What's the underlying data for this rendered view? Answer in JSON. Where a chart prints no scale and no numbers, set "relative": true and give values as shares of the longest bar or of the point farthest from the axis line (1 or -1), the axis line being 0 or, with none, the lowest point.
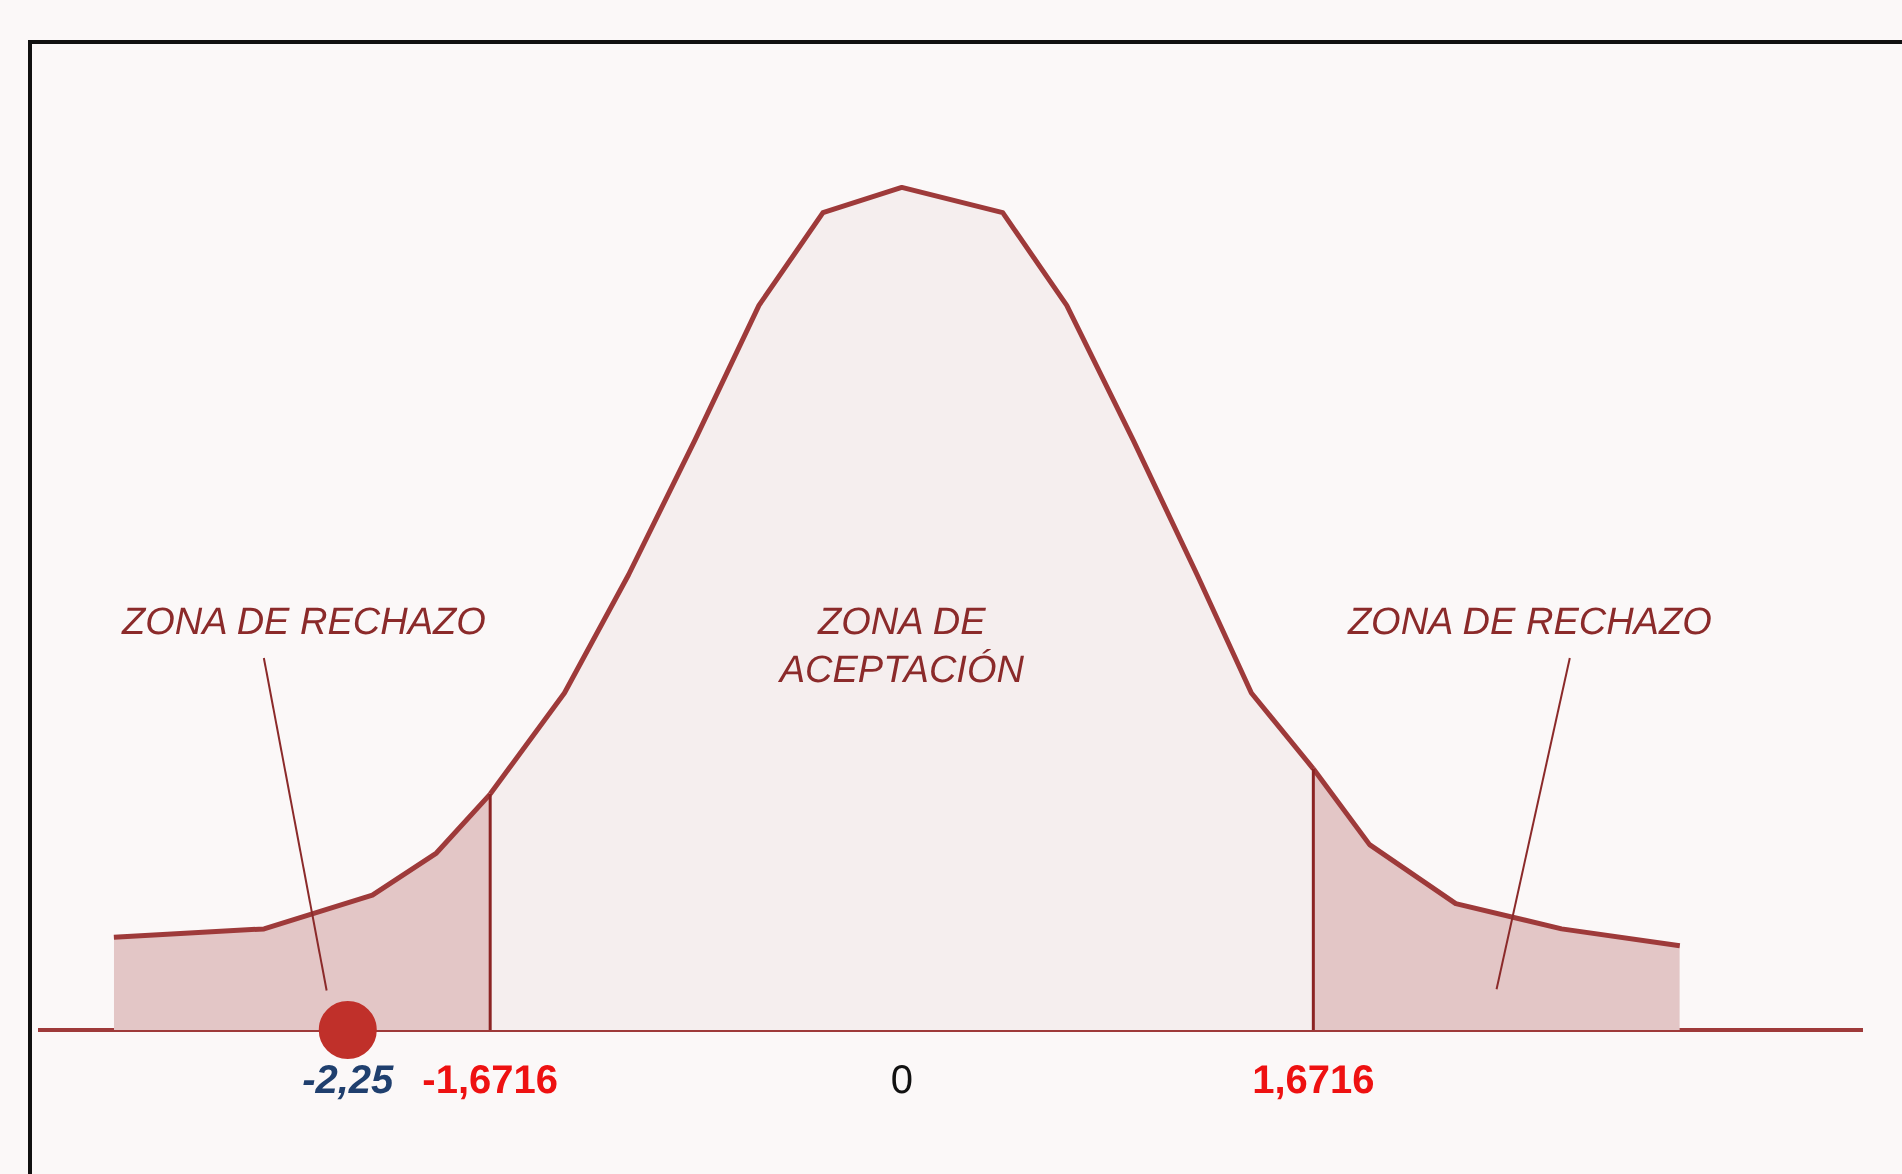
{
  "chart_data": {
    "type": "area",
    "relative": true,
    "series": [
      {
        "color": "#e3c6c6",
        "x": [
          -3.2,
          -2.59,
          -2.15,
          -1.89,
          -1.6716
        ],
        "values": [
          0.11,
          0.12,
          0.16,
          0.21,
          0.28
        ]
      },
      {
        "color": "#f5eeee",
        "x": [
          -1.6716,
          -1.37,
          -1.11,
          -0.84,
          -0.58,
          -0.32,
          0,
          0.41,
          0.67,
          0.94,
          1.2,
          1.42,
          1.6716
        ],
        "values": [
          0.28,
          0.4,
          0.54,
          0.7,
          0.86,
          0.97,
          1,
          0.97,
          0.86,
          0.7,
          0.54,
          0.4,
          0.31
        ]
      },
      {
        "color": "#e3c6c6",
        "x": [
          1.6716,
          1.9,
          2.25,
          2.68,
          3.16
        ],
        "values": [
          0.31,
          0.22,
          0.15,
          0.12,
          0.1
        ]
      },
      {
        "type": "scatter",
        "color": "#c0302a",
        "x": [
          -2.25
        ],
        "values": [
          0
        ]
      }
    ],
    "xlim": [
      -3.5,
      3.9
    ],
    "xticks": [
      {
        "value": -2.25,
        "label": "-2,25"
      },
      {
        "value": -1.6716,
        "label": "-1,6716"
      },
      0,
      {
        "value": 1.6716,
        "label": "1,6716"
      }
    ],
    "annotations": [
      "ZONA DE RECHAZO",
      "ZONA DE ACEPTACIÓN",
      "ZONA DE RECHAZO"
    ],
    "ref_lines": [
      {
        "axis": "x",
        "value": -1.6716,
        "color": "#8b2323"
      },
      {
        "axis": "x",
        "value": 1.6716,
        "color": "#8b2323"
      }
    ],
    "grid": false,
    "legend": false
  }
}
